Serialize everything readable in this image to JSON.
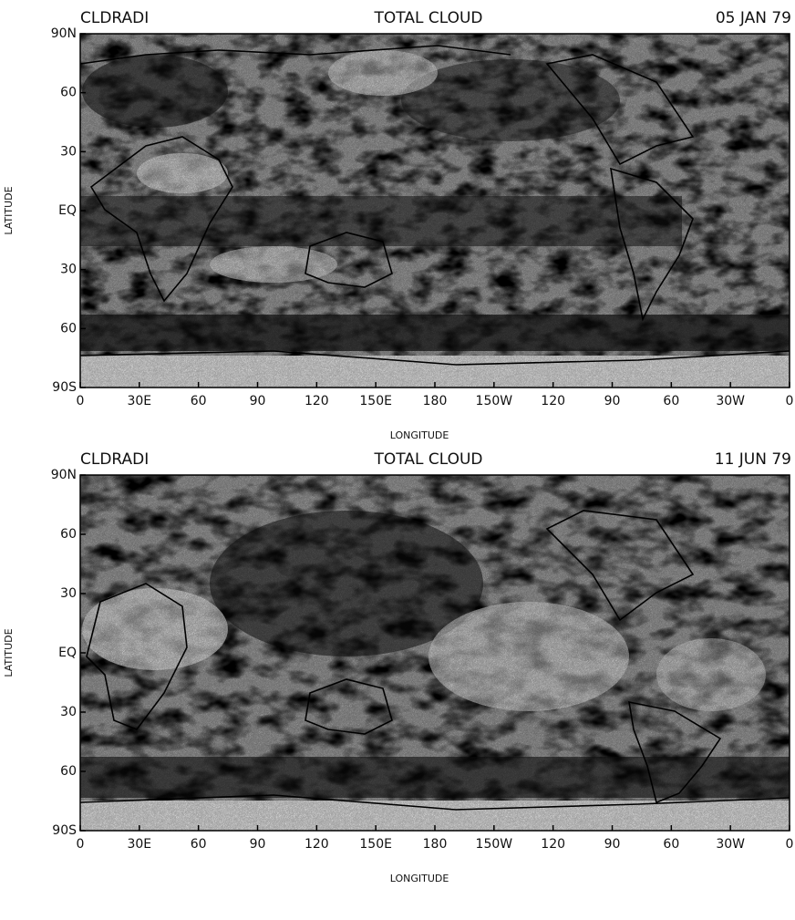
{
  "panels": [
    {
      "label": "CLDRADI",
      "title": "TOTAL CLOUD",
      "date": "05 JAN 79",
      "y_axis_label": "LATITUDE",
      "x_axis_label": "LONGITUDE",
      "y_tick_labels": [
        "90N",
        "60",
        "30",
        "EQ",
        "30",
        "60",
        "90S"
      ],
      "x_tick_labels": [
        "0",
        "30E",
        "60",
        "90",
        "120",
        "150E",
        "180",
        "150W",
        "120",
        "90",
        "60",
        "30W",
        "0"
      ]
    },
    {
      "label": "CLDRADI",
      "title": "TOTAL CLOUD",
      "date": "11 JUN 79",
      "y_axis_label": "LATITUDE",
      "x_axis_label": "LONGITUDE",
      "y_tick_labels": [
        "90N",
        "60",
        "30",
        "EQ",
        "30",
        "60",
        "90S"
      ],
      "x_tick_labels": [
        "0",
        "30E",
        "60",
        "90",
        "120",
        "150E",
        "180",
        "150W",
        "120",
        "90",
        "60",
        "30W",
        "0"
      ]
    }
  ]
}
